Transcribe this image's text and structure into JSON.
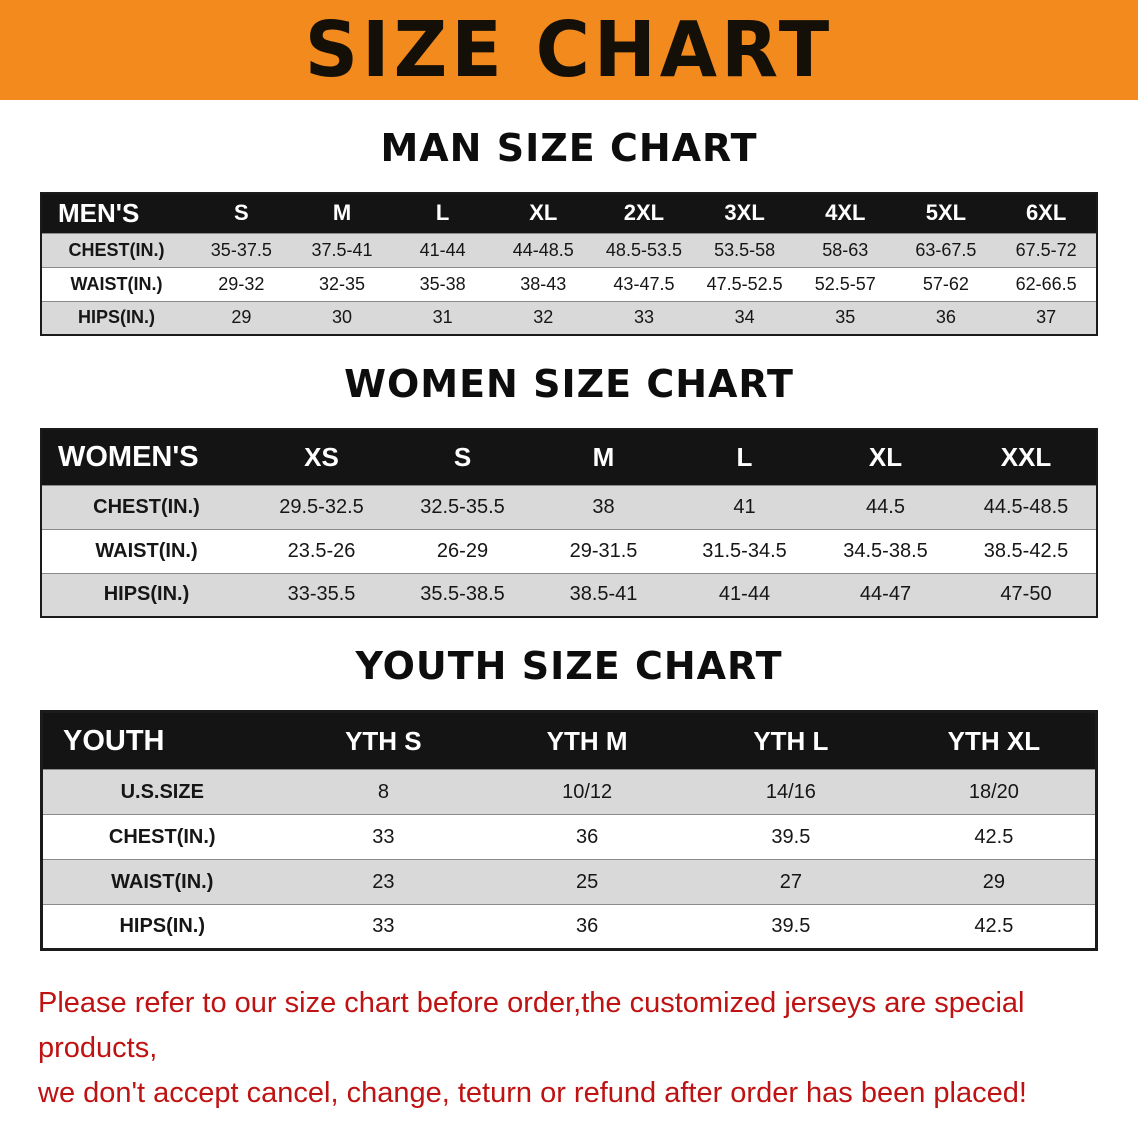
{
  "banner": {
    "title": "SIZE CHART"
  },
  "sections": [
    {
      "heading": "MAN SIZE CHART"
    },
    {
      "heading": "WOMEN SIZE CHART"
    },
    {
      "heading": "YOUTH SIZE CHART"
    }
  ],
  "chart_data": [
    {
      "type": "table",
      "title": "MAN SIZE CHART",
      "columns": [
        "MEN'S",
        "S",
        "M",
        "L",
        "XL",
        "2XL",
        "3XL",
        "4XL",
        "5XL",
        "6XL"
      ],
      "rows": [
        [
          "CHEST(IN.)",
          "35-37.5",
          "37.5-41",
          "41-44",
          "44-48.5",
          "48.5-53.5",
          "53.5-58",
          "58-63",
          "63-67.5",
          "67.5-72"
        ],
        [
          "WAIST(IN.)",
          "29-32",
          "32-35",
          "35-38",
          "38-43",
          "43-47.5",
          "47.5-52.5",
          "52.5-57",
          "57-62",
          "62-66.5"
        ],
        [
          "HIPS(IN.)",
          "29",
          "30",
          "31",
          "32",
          "33",
          "34",
          "35",
          "36",
          "37"
        ]
      ]
    },
    {
      "type": "table",
      "title": "WOMEN SIZE CHART",
      "columns": [
        "WOMEN'S",
        "XS",
        "S",
        "M",
        "L",
        "XL",
        "XXL"
      ],
      "rows": [
        [
          "CHEST(IN.)",
          "29.5-32.5",
          "32.5-35.5",
          "38",
          "41",
          "44.5",
          "44.5-48.5"
        ],
        [
          "WAIST(IN.)",
          "23.5-26",
          "26-29",
          "29-31.5",
          "31.5-34.5",
          "34.5-38.5",
          "38.5-42.5"
        ],
        [
          "HIPS(IN.)",
          "33-35.5",
          "35.5-38.5",
          "38.5-41",
          "41-44",
          "44-47",
          "47-50"
        ]
      ]
    },
    {
      "type": "table",
      "title": "YOUTH SIZE CHART",
      "columns": [
        "YOUTH",
        "YTH S",
        "YTH M",
        "YTH L",
        "YTH XL"
      ],
      "rows": [
        [
          "U.S.SIZE",
          "8",
          "10/12",
          "14/16",
          "18/20"
        ],
        [
          "CHEST(IN.)",
          "33",
          "36",
          "39.5",
          "42.5"
        ],
        [
          "WAIST(IN.)",
          "23",
          "25",
          "27",
          "29"
        ],
        [
          "HIPS(IN.)",
          "33",
          "36",
          "39.5",
          "42.5"
        ]
      ]
    }
  ],
  "footer": {
    "line1": "Please refer to our size chart before order,the customized jerseys are special products,",
    "line2": "we don't accept cancel, change, teturn or refund after order has been placed!"
  },
  "colors": {
    "banner_bg": "#f28a1e",
    "table_header_bg": "#141414",
    "row_stripe": "#d9d9d9",
    "footer_text": "#bf1212"
  }
}
